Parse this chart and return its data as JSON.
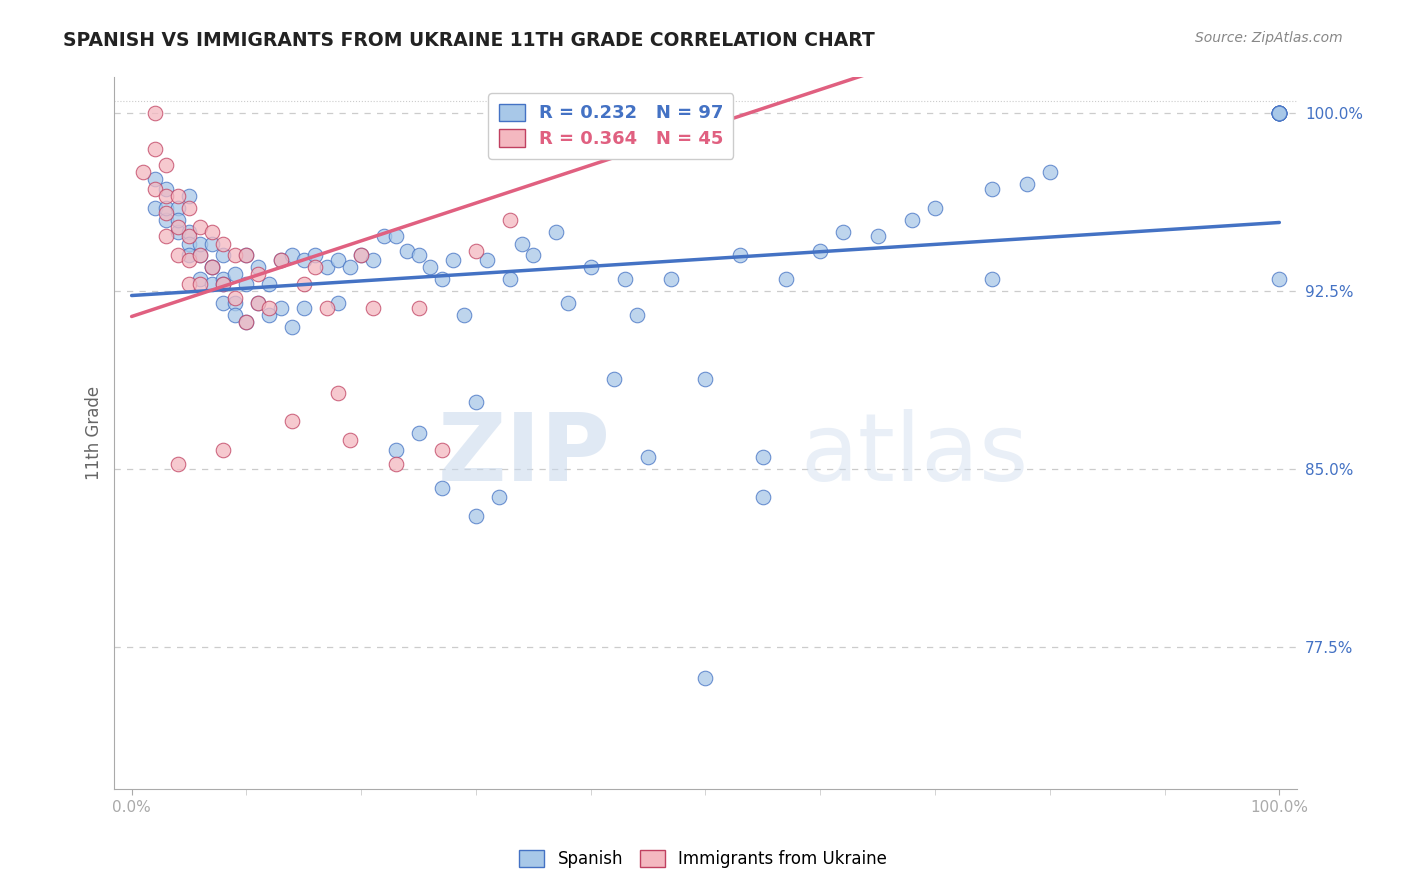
{
  "title": "SPANISH VS IMMIGRANTS FROM UKRAINE 11TH GRADE CORRELATION CHART",
  "source": "Source: ZipAtlas.com",
  "ylabel": "11th Grade",
  "ylim": [
    0.715,
    1.015
  ],
  "xlim": [
    -0.015,
    1.015
  ],
  "R_spanish": 0.232,
  "N_spanish": 97,
  "R_ukraine": 0.364,
  "N_ukraine": 45,
  "blue_color": "#a8c8e8",
  "pink_color": "#f4b8c0",
  "blue_line_color": "#4472C4",
  "pink_line_color": "#E06080",
  "blue_edge_color": "#4472C4",
  "pink_edge_color": "#C04060",
  "watermark_zip": "ZIP",
  "watermark_atlas": "atlas",
  "ytick_vals": [
    0.775,
    0.85,
    0.925,
    1.0
  ],
  "ytick_labels": [
    "77.5%",
    "85.0%",
    "92.5%",
    "100.0%"
  ],
  "spanish_x": [
    0.02,
    0.02,
    0.03,
    0.03,
    0.03,
    0.04,
    0.04,
    0.04,
    0.05,
    0.05,
    0.05,
    0.05,
    0.06,
    0.06,
    0.06,
    0.07,
    0.07,
    0.07,
    0.07,
    0.08,
    0.08,
    0.08,
    0.08,
    0.09,
    0.09,
    0.09,
    0.1,
    0.1,
    0.1,
    0.11,
    0.11,
    0.12,
    0.12,
    0.13,
    0.13,
    0.14,
    0.14,
    0.15,
    0.15,
    0.16,
    0.17,
    0.18,
    0.18,
    0.19,
    0.2,
    0.21,
    0.22,
    0.23,
    0.24,
    0.25,
    0.26,
    0.27,
    0.28,
    0.29,
    0.3,
    0.31,
    0.33,
    0.34,
    0.35,
    0.37,
    0.38,
    0.4,
    0.42,
    0.43,
    0.44,
    0.45,
    0.47,
    0.5,
    0.53,
    0.55,
    0.57,
    0.6,
    0.62,
    0.65,
    0.68,
    0.7,
    0.75,
    0.78,
    0.8,
    0.23,
    0.25,
    0.27,
    0.3,
    0.32,
    1.0,
    1.0,
    1.0,
    1.0,
    1.0,
    1.0,
    1.0,
    1.0,
    1.0,
    1.0,
    0.55,
    0.75,
    0.5
  ],
  "spanish_y": [
    0.96,
    0.972,
    0.955,
    0.968,
    0.96,
    0.96,
    0.95,
    0.955,
    0.965,
    0.95,
    0.945,
    0.94,
    0.94,
    0.93,
    0.945,
    0.935,
    0.928,
    0.945,
    0.935,
    0.93,
    0.92,
    0.94,
    0.928,
    0.92,
    0.932,
    0.915,
    0.94,
    0.928,
    0.912,
    0.935,
    0.92,
    0.928,
    0.915,
    0.938,
    0.918,
    0.94,
    0.91,
    0.938,
    0.918,
    0.94,
    0.935,
    0.938,
    0.92,
    0.935,
    0.94,
    0.938,
    0.948,
    0.948,
    0.942,
    0.94,
    0.935,
    0.93,
    0.938,
    0.915,
    0.878,
    0.938,
    0.93,
    0.945,
    0.94,
    0.95,
    0.92,
    0.935,
    0.888,
    0.93,
    0.915,
    0.855,
    0.93,
    0.888,
    0.94,
    0.855,
    0.93,
    0.942,
    0.95,
    0.948,
    0.955,
    0.96,
    0.968,
    0.97,
    0.975,
    0.858,
    0.865,
    0.842,
    0.83,
    0.838,
    1.0,
    1.0,
    1.0,
    1.0,
    1.0,
    1.0,
    1.0,
    1.0,
    1.0,
    0.93,
    0.838,
    0.93,
    0.762
  ],
  "ukraine_x": [
    0.01,
    0.02,
    0.02,
    0.02,
    0.03,
    0.03,
    0.03,
    0.03,
    0.04,
    0.04,
    0.04,
    0.05,
    0.05,
    0.05,
    0.05,
    0.06,
    0.06,
    0.06,
    0.07,
    0.07,
    0.08,
    0.08,
    0.09,
    0.09,
    0.1,
    0.1,
    0.11,
    0.11,
    0.12,
    0.13,
    0.14,
    0.15,
    0.16,
    0.17,
    0.18,
    0.19,
    0.2,
    0.21,
    0.23,
    0.25,
    0.27,
    0.3,
    0.33,
    0.08,
    0.04
  ],
  "ukraine_y": [
    0.975,
    1.0,
    0.985,
    0.968,
    0.978,
    0.965,
    0.958,
    0.948,
    0.965,
    0.952,
    0.94,
    0.96,
    0.948,
    0.938,
    0.928,
    0.952,
    0.94,
    0.928,
    0.95,
    0.935,
    0.945,
    0.928,
    0.94,
    0.922,
    0.94,
    0.912,
    0.932,
    0.92,
    0.918,
    0.938,
    0.87,
    0.928,
    0.935,
    0.918,
    0.882,
    0.862,
    0.94,
    0.918,
    0.852,
    0.918,
    0.858,
    0.942,
    0.955,
    0.858,
    0.852
  ]
}
